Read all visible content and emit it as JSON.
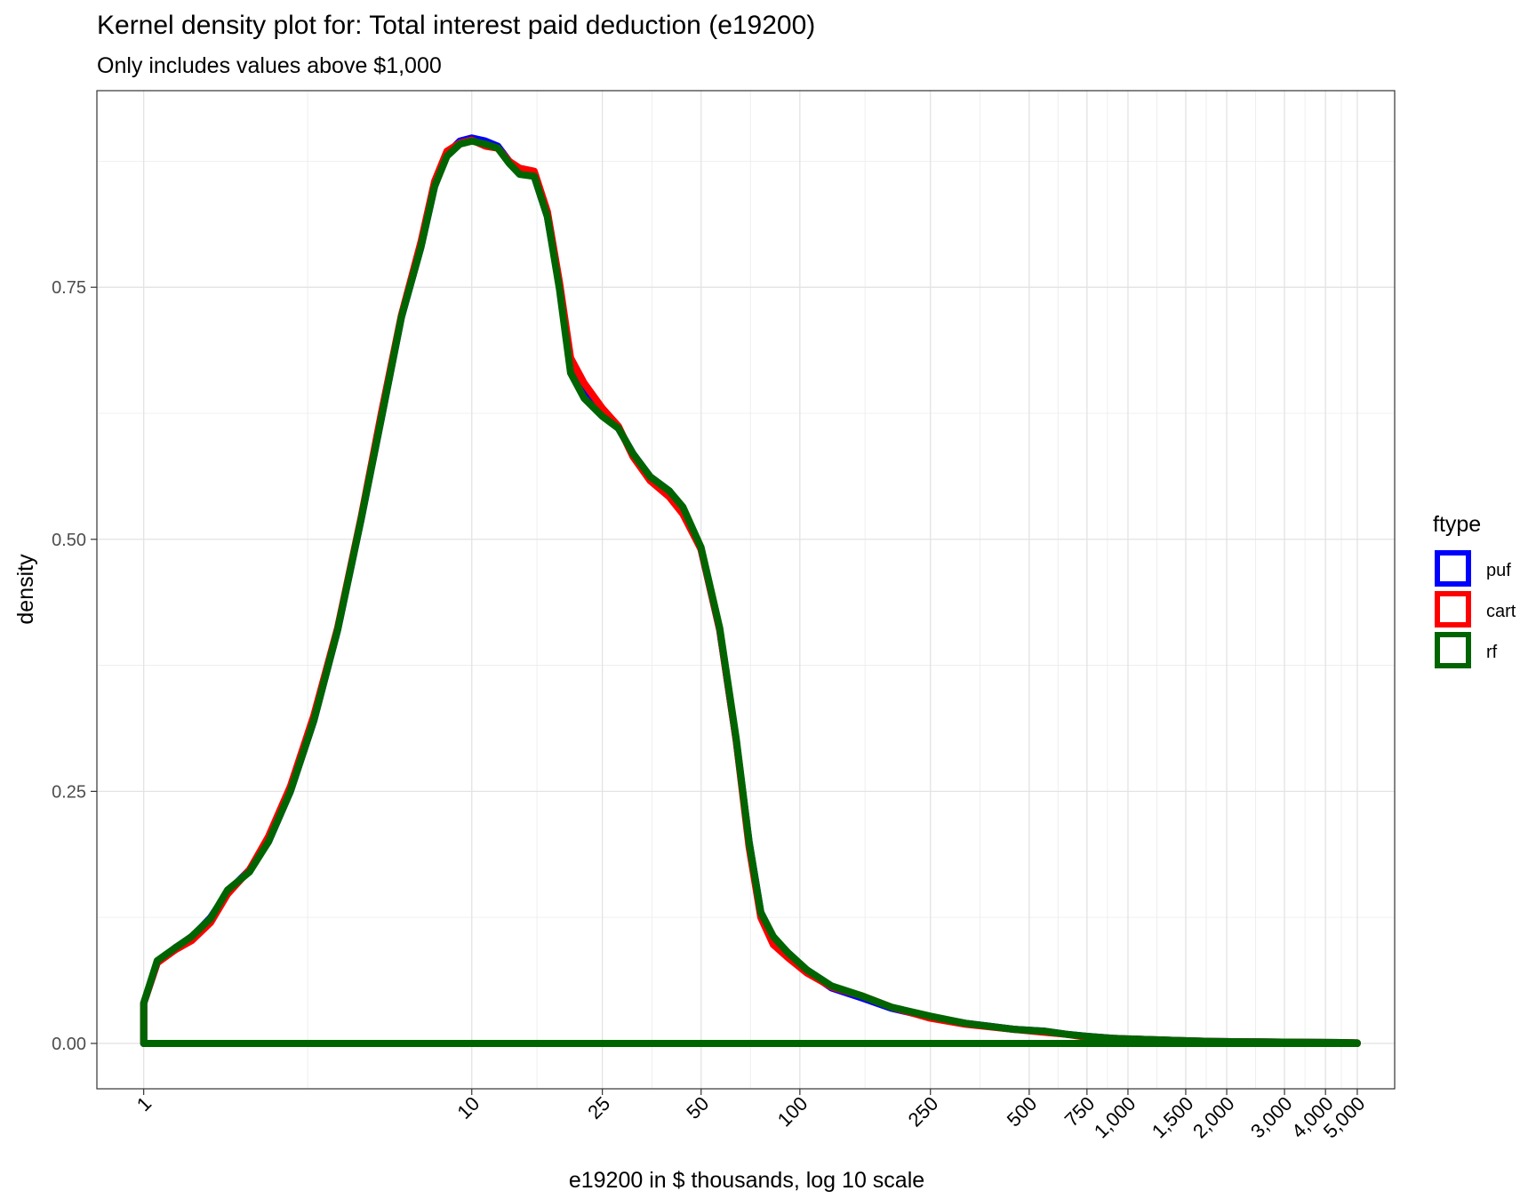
{
  "chart_data": {
    "type": "line",
    "title": "Kernel density plot for: Total interest paid deduction (e19200)",
    "subtitle": "Only includes values above $1,000",
    "xlabel": "e19200 in $ thousands, log 10 scale",
    "ylabel": "density",
    "x_scale": "log10",
    "xlim": [
      0.72,
      6500
    ],
    "ylim": [
      -0.045,
      0.945
    ],
    "x_ticks": [
      {
        "value": 1,
        "label": "1"
      },
      {
        "value": 10,
        "label": "10"
      },
      {
        "value": 25,
        "label": "25"
      },
      {
        "value": 50,
        "label": "50"
      },
      {
        "value": 100,
        "label": "100"
      },
      {
        "value": 250,
        "label": "250"
      },
      {
        "value": 500,
        "label": "500"
      },
      {
        "value": 750,
        "label": "750"
      },
      {
        "value": 1000,
        "label": "1,000"
      },
      {
        "value": 1500,
        "label": "1,500"
      },
      {
        "value": 2000,
        "label": "2,000"
      },
      {
        "value": 3000,
        "label": "3,000"
      },
      {
        "value": 4000,
        "label": "4,000"
      },
      {
        "value": 5000,
        "label": "5,000"
      }
    ],
    "y_ticks": [
      {
        "value": 0,
        "label": "0.00"
      },
      {
        "value": 0.25,
        "label": "0.25"
      },
      {
        "value": 0.5,
        "label": "0.50"
      },
      {
        "value": 0.75,
        "label": "0.75"
      }
    ],
    "x_minor_gridlines": [
      3.16,
      15.8,
      35.4,
      70.7,
      158,
      354,
      612,
      866,
      1225,
      1732,
      2449,
      3464,
      4472
    ],
    "y_minor_gridlines": [
      0.125,
      0.375,
      0.625,
      0.875
    ],
    "grid": true,
    "legend": {
      "title": "ftype",
      "position": "right"
    },
    "series": [
      {
        "name": "puf",
        "color": "#0000FF",
        "points": [
          [
            1,
            0
          ],
          [
            1,
            0.04
          ],
          [
            1.1,
            0.08
          ],
          [
            1.25,
            0.095
          ],
          [
            1.4,
            0.105
          ],
          [
            1.6,
            0.125
          ],
          [
            1.8,
            0.15
          ],
          [
            2.1,
            0.172
          ],
          [
            2.4,
            0.2
          ],
          [
            2.8,
            0.25
          ],
          [
            3.3,
            0.32
          ],
          [
            3.9,
            0.41
          ],
          [
            4.6,
            0.52
          ],
          [
            5.3,
            0.62
          ],
          [
            6.1,
            0.72
          ],
          [
            7.0,
            0.79
          ],
          [
            7.7,
            0.85
          ],
          [
            8.4,
            0.882
          ],
          [
            9.2,
            0.895
          ],
          [
            10,
            0.898
          ],
          [
            11,
            0.895
          ],
          [
            12,
            0.89
          ],
          [
            13,
            0.875
          ],
          [
            14,
            0.865
          ],
          [
            15.5,
            0.86
          ],
          [
            17,
            0.82
          ],
          [
            18.5,
            0.75
          ],
          [
            20,
            0.67
          ],
          [
            22,
            0.645
          ],
          [
            25,
            0.625
          ],
          [
            28,
            0.61
          ],
          [
            31,
            0.585
          ],
          [
            35,
            0.562
          ],
          [
            40,
            0.548
          ],
          [
            44,
            0.53
          ],
          [
            50,
            0.49
          ],
          [
            57,
            0.41
          ],
          [
            64,
            0.3
          ],
          [
            70,
            0.2
          ],
          [
            76,
            0.13
          ],
          [
            83,
            0.105
          ],
          [
            92,
            0.09
          ],
          [
            105,
            0.072
          ],
          [
            125,
            0.055
          ],
          [
            155,
            0.045
          ],
          [
            190,
            0.035
          ],
          [
            250,
            0.026
          ],
          [
            320,
            0.02
          ],
          [
            450,
            0.014
          ],
          [
            560,
            0.012
          ],
          [
            650,
            0.009
          ],
          [
            750,
            0.007
          ],
          [
            900,
            0.005
          ],
          [
            1100,
            0.004
          ],
          [
            1400,
            0.003
          ],
          [
            1800,
            0.002
          ],
          [
            2500,
            0.0015
          ],
          [
            3500,
            0.001
          ],
          [
            4500,
            0.0008
          ],
          [
            5000,
            0.0005
          ],
          [
            5000,
            0
          ],
          [
            1,
            0
          ]
        ]
      },
      {
        "name": "cart",
        "color": "#FF0000",
        "points": [
          [
            1,
            0
          ],
          [
            1,
            0.04
          ],
          [
            1.1,
            0.08
          ],
          [
            1.25,
            0.093
          ],
          [
            1.4,
            0.102
          ],
          [
            1.6,
            0.12
          ],
          [
            1.8,
            0.148
          ],
          [
            2.1,
            0.172
          ],
          [
            2.4,
            0.205
          ],
          [
            2.8,
            0.255
          ],
          [
            3.3,
            0.325
          ],
          [
            3.9,
            0.412
          ],
          [
            4.6,
            0.522
          ],
          [
            5.3,
            0.625
          ],
          [
            6.1,
            0.722
          ],
          [
            7.0,
            0.795
          ],
          [
            7.7,
            0.855
          ],
          [
            8.4,
            0.885
          ],
          [
            9.2,
            0.893
          ],
          [
            10,
            0.896
          ],
          [
            11,
            0.89
          ],
          [
            12,
            0.888
          ],
          [
            13,
            0.875
          ],
          [
            14,
            0.868
          ],
          [
            15.5,
            0.865
          ],
          [
            17,
            0.825
          ],
          [
            18.5,
            0.755
          ],
          [
            20,
            0.68
          ],
          [
            22,
            0.655
          ],
          [
            25,
            0.63
          ],
          [
            28,
            0.612
          ],
          [
            31,
            0.582
          ],
          [
            35,
            0.558
          ],
          [
            40,
            0.542
          ],
          [
            44,
            0.525
          ],
          [
            50,
            0.49
          ],
          [
            57,
            0.41
          ],
          [
            64,
            0.3
          ],
          [
            70,
            0.195
          ],
          [
            76,
            0.125
          ],
          [
            83,
            0.098
          ],
          [
            92,
            0.085
          ],
          [
            105,
            0.07
          ],
          [
            125,
            0.056
          ],
          [
            155,
            0.047
          ],
          [
            190,
            0.036
          ],
          [
            250,
            0.025
          ],
          [
            320,
            0.019
          ],
          [
            450,
            0.014
          ],
          [
            560,
            0.011
          ],
          [
            650,
            0.009
          ],
          [
            750,
            0.006
          ],
          [
            900,
            0.005
          ],
          [
            1100,
            0.004
          ],
          [
            1400,
            0.003
          ],
          [
            1800,
            0.002
          ],
          [
            2500,
            0.0015
          ],
          [
            3500,
            0.001
          ],
          [
            4500,
            0.0008
          ],
          [
            5000,
            0.0005
          ],
          [
            5000,
            0
          ],
          [
            1,
            0
          ]
        ]
      },
      {
        "name": "rf",
        "color": "#006400",
        "points": [
          [
            1,
            0
          ],
          [
            1,
            0.04
          ],
          [
            1.1,
            0.082
          ],
          [
            1.25,
            0.095
          ],
          [
            1.4,
            0.106
          ],
          [
            1.6,
            0.124
          ],
          [
            1.8,
            0.152
          ],
          [
            2.1,
            0.17
          ],
          [
            2.4,
            0.2
          ],
          [
            2.8,
            0.25
          ],
          [
            3.3,
            0.32
          ],
          [
            3.9,
            0.41
          ],
          [
            4.6,
            0.52
          ],
          [
            5.3,
            0.62
          ],
          [
            6.1,
            0.72
          ],
          [
            7.0,
            0.79
          ],
          [
            7.7,
            0.85
          ],
          [
            8.4,
            0.88
          ],
          [
            9.2,
            0.892
          ],
          [
            10,
            0.895
          ],
          [
            11,
            0.892
          ],
          [
            12,
            0.888
          ],
          [
            13,
            0.873
          ],
          [
            14,
            0.862
          ],
          [
            15.5,
            0.86
          ],
          [
            17,
            0.82
          ],
          [
            18.5,
            0.748
          ],
          [
            20,
            0.665
          ],
          [
            22,
            0.64
          ],
          [
            25,
            0.622
          ],
          [
            28,
            0.61
          ],
          [
            31,
            0.585
          ],
          [
            35,
            0.562
          ],
          [
            40,
            0.548
          ],
          [
            44,
            0.532
          ],
          [
            50,
            0.492
          ],
          [
            57,
            0.412
          ],
          [
            64,
            0.302
          ],
          [
            70,
            0.2
          ],
          [
            76,
            0.13
          ],
          [
            83,
            0.106
          ],
          [
            92,
            0.09
          ],
          [
            105,
            0.073
          ],
          [
            125,
            0.057
          ],
          [
            155,
            0.047
          ],
          [
            190,
            0.036
          ],
          [
            250,
            0.027
          ],
          [
            320,
            0.02
          ],
          [
            450,
            0.014
          ],
          [
            560,
            0.012
          ],
          [
            650,
            0.009
          ],
          [
            750,
            0.007
          ],
          [
            900,
            0.005
          ],
          [
            1100,
            0.004
          ],
          [
            1400,
            0.003
          ],
          [
            1800,
            0.002
          ],
          [
            2500,
            0.0015
          ],
          [
            3500,
            0.001
          ],
          [
            4500,
            0.0008
          ],
          [
            5000,
            0.0005
          ],
          [
            5000,
            0
          ],
          [
            1,
            0
          ]
        ]
      }
    ]
  }
}
